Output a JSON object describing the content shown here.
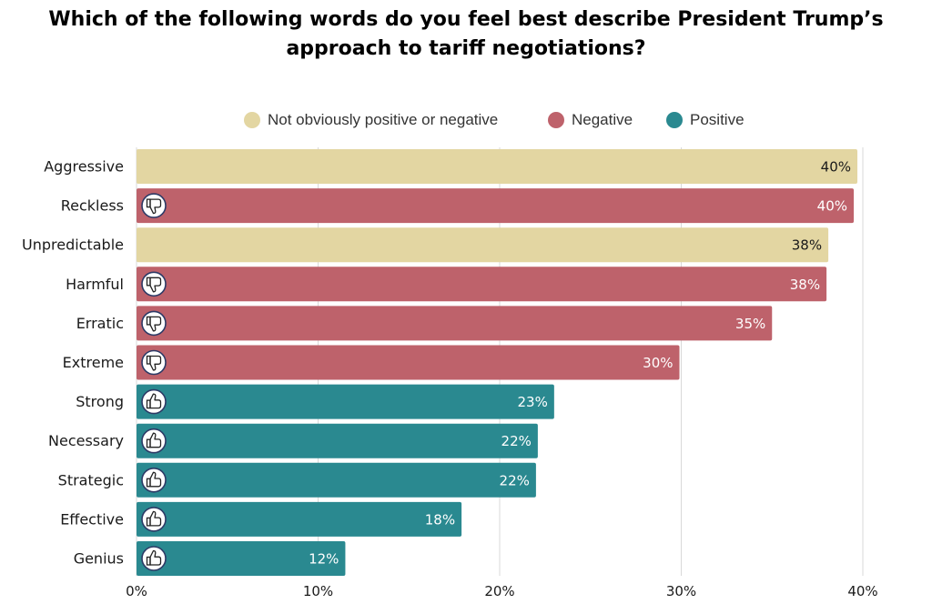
{
  "chart_data": {
    "type": "bar",
    "orientation": "horizontal",
    "title": "Which of the following words do you feel best describe President Trump’s approach to tariff negotiations?",
    "title_lines": [
      "Which of the following words do you feel best describe President Trump’s",
      "approach to tariff negotiations?"
    ],
    "legend": [
      {
        "name": "Not obviously positive or negative",
        "key": "neutral",
        "color": "#e3d6a2"
      },
      {
        "name": "Negative",
        "key": "negative",
        "color": "#be626b"
      },
      {
        "name": "Positive",
        "key": "positive",
        "color": "#2a8990"
      }
    ],
    "legend_position": "top",
    "categories": [
      "Aggressive",
      "Reckless",
      "Unpredictable",
      "Harmful",
      "Erratic",
      "Extreme",
      "Strong",
      "Necessary",
      "Strategic",
      "Effective",
      "Genius"
    ],
    "values": [
      39.7,
      39.5,
      38.1,
      38.0,
      35.0,
      29.9,
      23.0,
      22.1,
      22.0,
      17.9,
      11.5
    ],
    "value_labels": [
      "40%",
      "40%",
      "38%",
      "38%",
      "35%",
      "30%",
      "23%",
      "22%",
      "22%",
      "18%",
      "12%"
    ],
    "sentiment": [
      "neutral",
      "negative",
      "neutral",
      "negative",
      "negative",
      "negative",
      "positive",
      "positive",
      "positive",
      "positive",
      "positive"
    ],
    "xlim": [
      0,
      40
    ],
    "x_ticks": [
      0,
      10,
      20,
      30,
      40
    ],
    "x_tick_labels": [
      "0%",
      "10%",
      "20%",
      "30%",
      "40%"
    ],
    "grid": true,
    "icons": {
      "negative": "thumbs-down-icon",
      "positive": "thumbs-up-icon",
      "neutral": ""
    }
  }
}
